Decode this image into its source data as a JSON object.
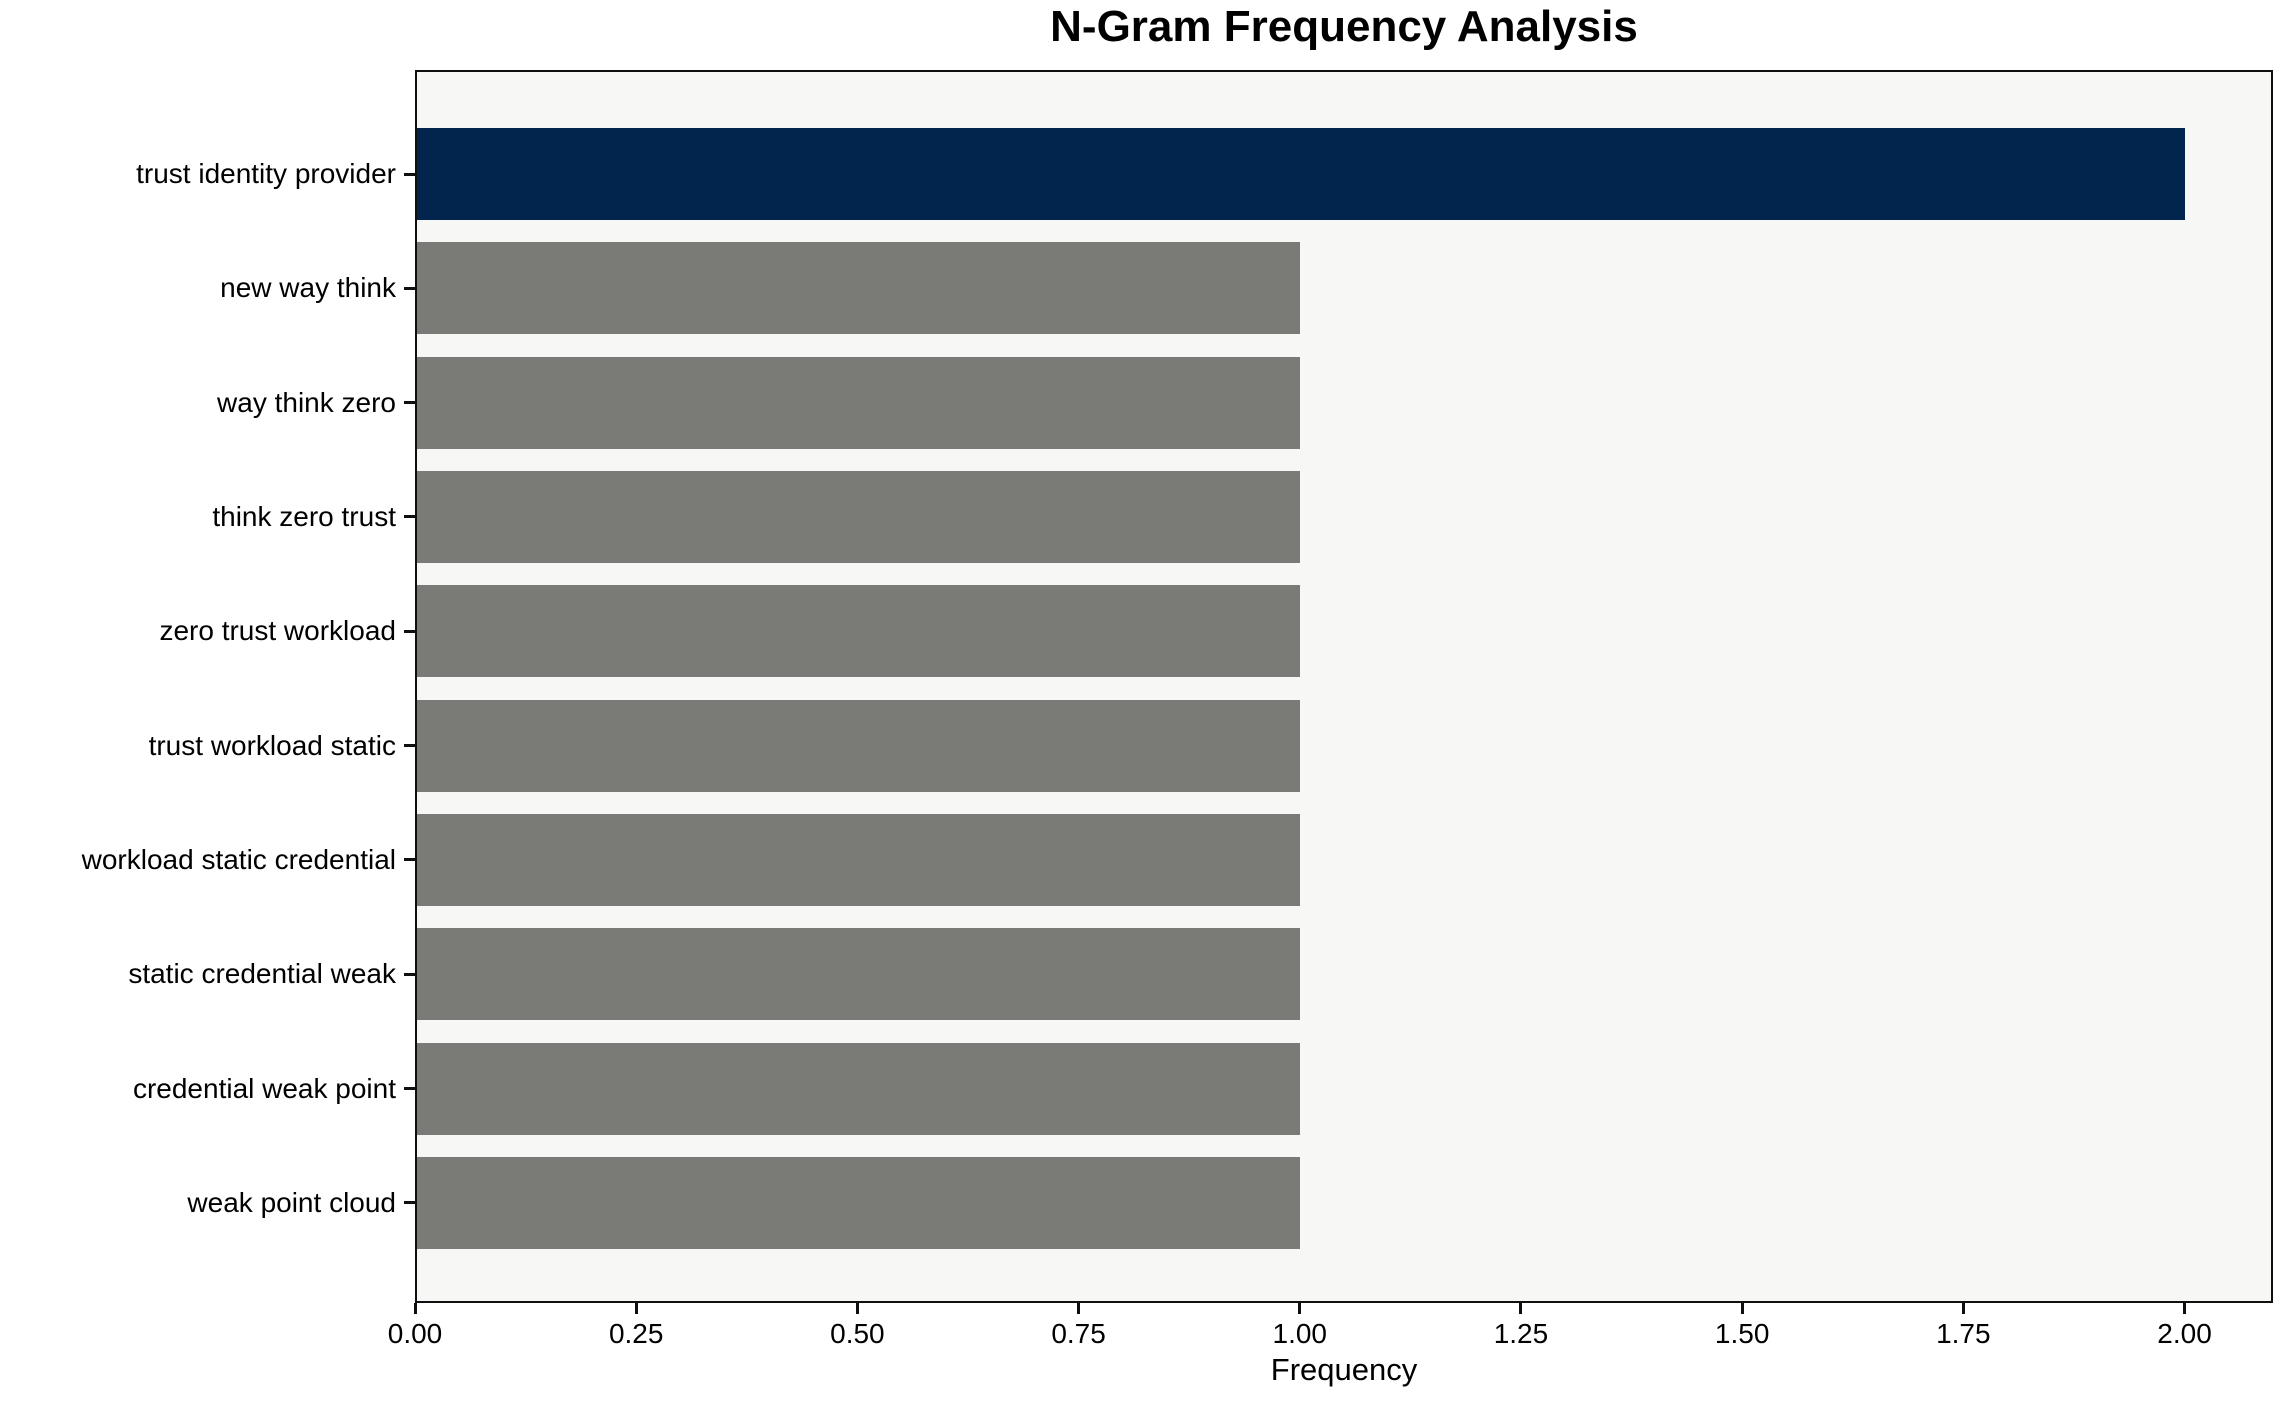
{
  "chart_data": {
    "type": "bar",
    "orientation": "horizontal",
    "title": "N-Gram Frequency Analysis",
    "xlabel": "Frequency",
    "ylabel": "",
    "categories": [
      "trust identity provider",
      "new way think",
      "way think zero",
      "think zero trust",
      "zero trust workload",
      "trust workload static",
      "workload static credential",
      "static credential weak",
      "credential weak point",
      "weak point cloud"
    ],
    "values": [
      2,
      1,
      1,
      1,
      1,
      1,
      1,
      1,
      1,
      1
    ],
    "bar_colors": [
      "#02254e",
      "#7a7a77",
      "#7a7a77",
      "#7a7a77",
      "#7a7a77",
      "#7a7a77",
      "#7a7a77",
      "#7a7a77",
      "#7a7a77",
      "#7a7a77"
    ],
    "highlight_color": "#02254e",
    "default_color": "#7a7a77",
    "xlim": [
      0,
      2.1
    ],
    "xticks": [
      0,
      0.25,
      0.5,
      0.75,
      1,
      1.25,
      1.5,
      1.75,
      2
    ],
    "xtick_labels": [
      "0.00",
      "0.25",
      "0.50",
      "0.75",
      "1.00",
      "1.25",
      "1.50",
      "1.75",
      "2.00"
    ],
    "grid": false,
    "legend": null,
    "plot_bg": "#f7f7f6",
    "figure_bg": "#ffffff",
    "axis_color": "#0f0f0f",
    "text_color": "#000000"
  }
}
